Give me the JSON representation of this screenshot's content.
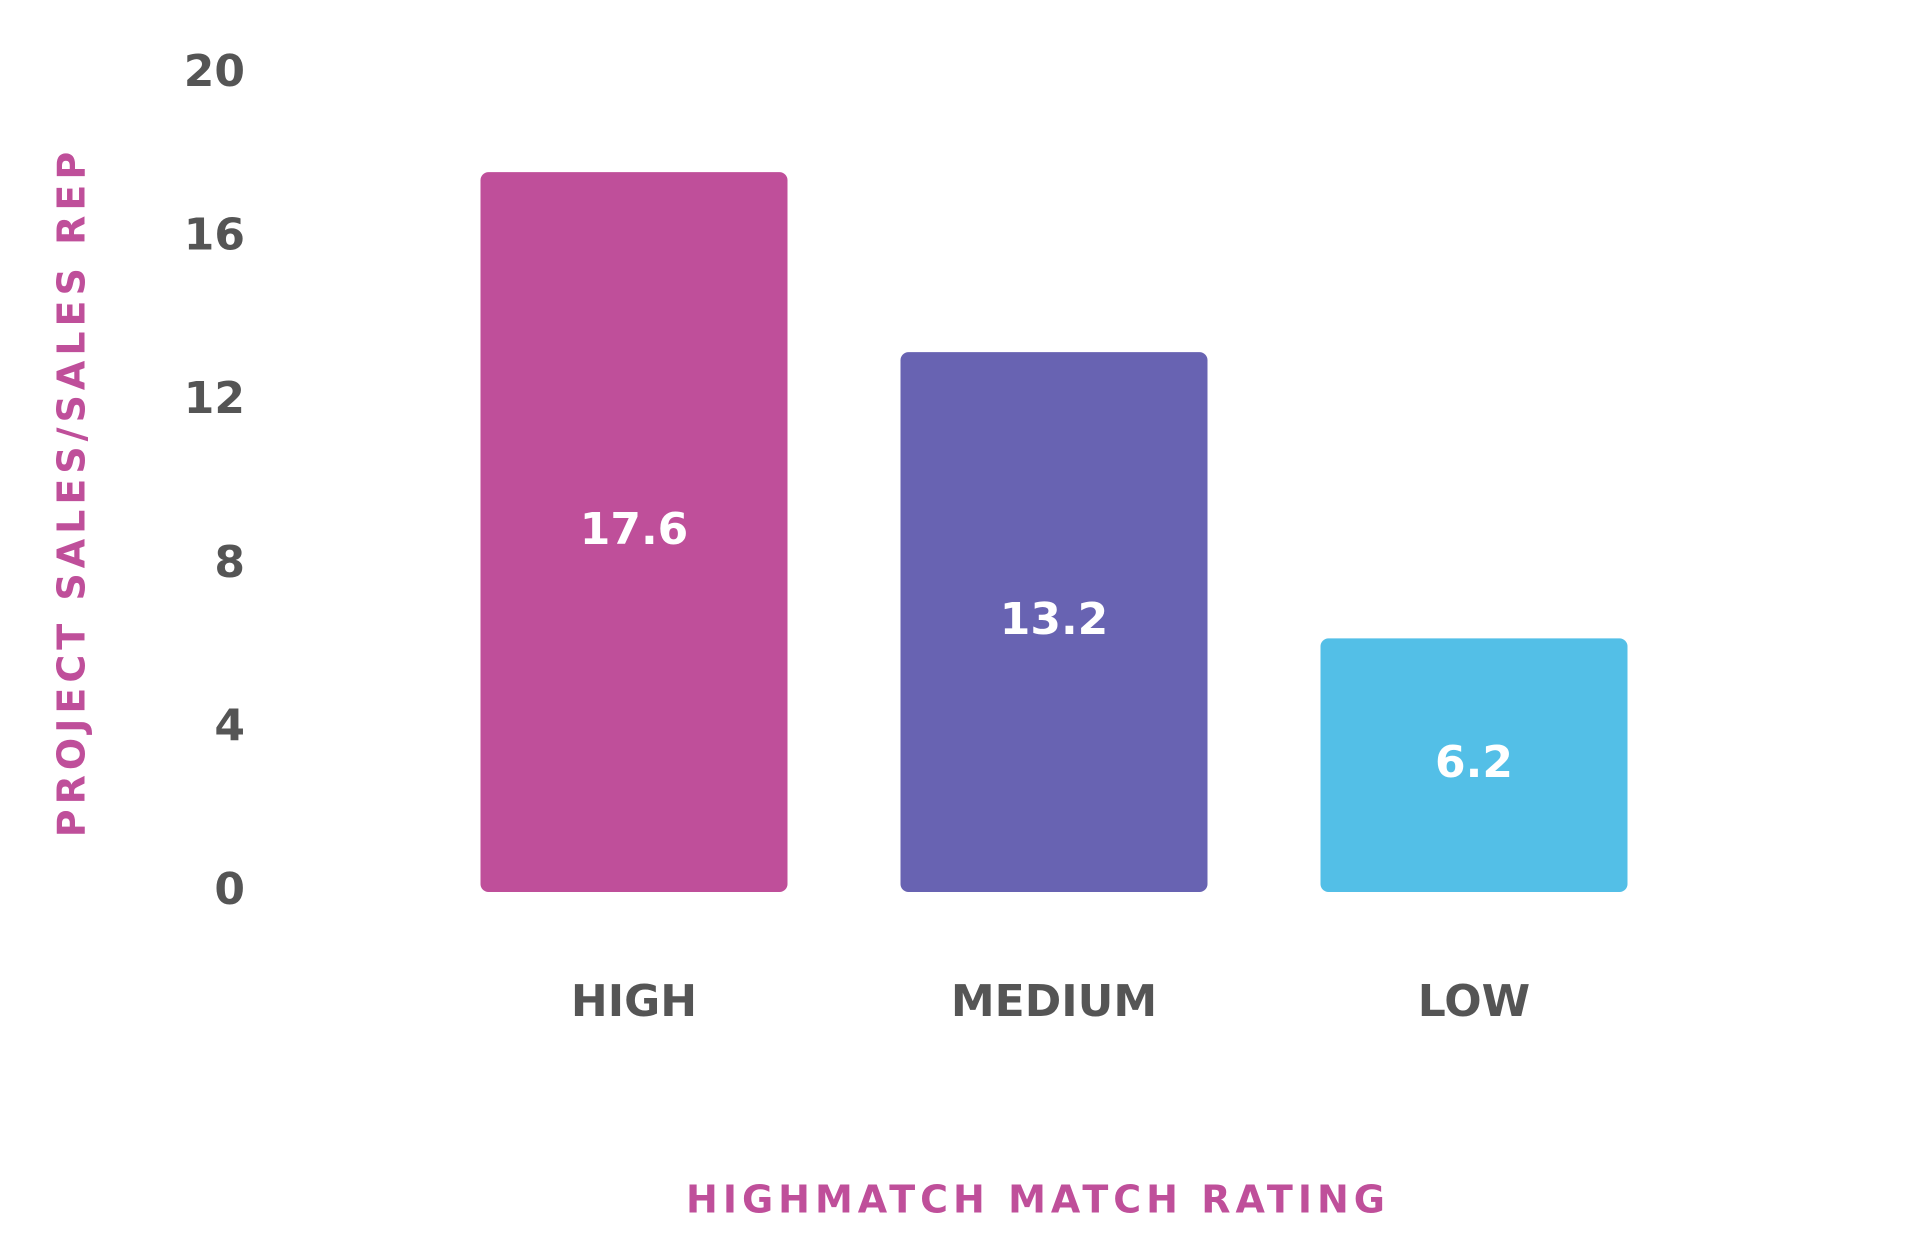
{
  "chart_data": {
    "type": "bar",
    "x_label": "HIGHMATCH MATCH RATING",
    "y_label": "PROJECT SALES/SALES REP",
    "categories": [
      "HIGH",
      "MEDIUM",
      "LOW"
    ],
    "values": [
      17.6,
      13.2,
      6.2
    ],
    "colors": [
      "#bf4f9a",
      "#6863b2",
      "#53bfe7"
    ],
    "ylim": [
      0,
      20
    ],
    "yticks": [
      0,
      4,
      8,
      12,
      16,
      20
    ],
    "grid": false
  }
}
